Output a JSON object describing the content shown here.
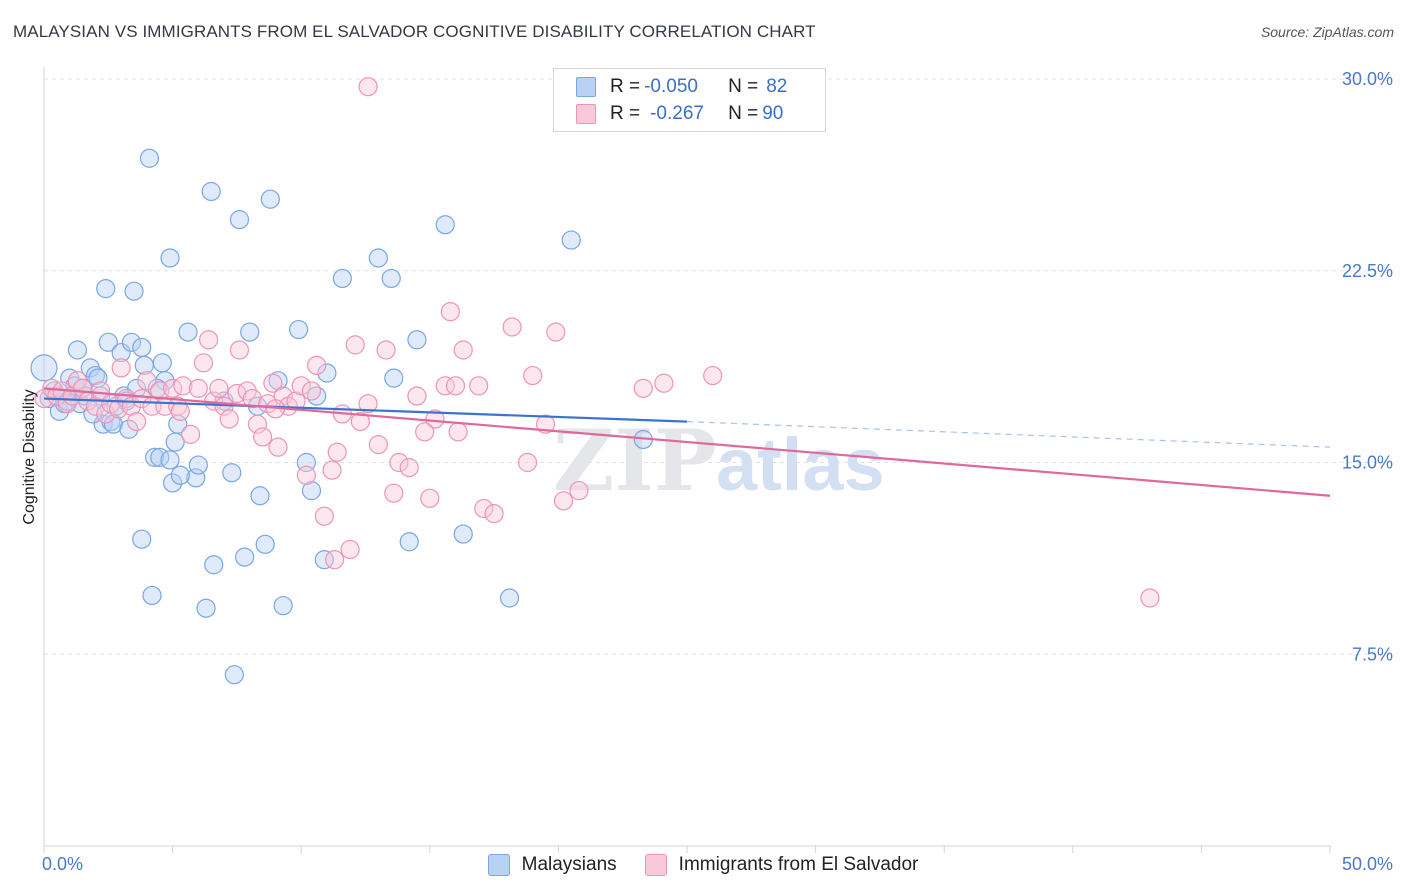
{
  "title": "MALAYSIAN VS IMMIGRANTS FROM EL SALVADOR COGNITIVE DISABILITY CORRELATION CHART",
  "source": "Source: ZipAtlas.com",
  "watermark": {
    "zip": "ZIP",
    "atlas": "atlas"
  },
  "legend": {
    "rows": [
      {
        "r_label": "R = ",
        "r_value": "-0.050",
        "n_label": "N = ",
        "n_value": "82"
      },
      {
        "r_label": "R = ",
        "r_value": "-0.267",
        "n_label": "N = ",
        "n_value": "90"
      }
    ]
  },
  "bottom_legend": {
    "series1": "Malaysians",
    "series2": "Immigrants from El Salvador"
  },
  "chart_data": {
    "type": "scatter",
    "ylabel": "Cognitive Disability",
    "xlabel": "",
    "xlim": [
      0,
      50
    ],
    "ylim": [
      0,
      30
    ],
    "x_tick_labels": [
      "0.0%",
      "50.0%"
    ],
    "y_ticks": [
      7.5,
      15.0,
      22.5,
      30.0
    ],
    "y_tick_labels": [
      "7.5%",
      "15.0%",
      "22.5%",
      "30.0%"
    ],
    "grid": "horizontal dashed",
    "legend_position": "top-center",
    "colors": {
      "series1": "#6fa0e0",
      "series1_line": "#3a74d0",
      "series2": "#ee94b6",
      "series2_line": "#e0689a"
    },
    "series": [
      {
        "name": "Malaysians",
        "r": -0.05,
        "n": 82,
        "trend": {
          "x0": 0,
          "y0": 17.5,
          "x1": 25,
          "y1": 16.6,
          "dashed_to_x": 50,
          "dashed_to_y": 15.6
        },
        "points": [
          [
            0.0,
            18.7
          ],
          [
            0.2,
            17.5
          ],
          [
            0.4,
            17.8
          ],
          [
            0.6,
            17.0
          ],
          [
            0.8,
            17.3
          ],
          [
            1.0,
            18.3
          ],
          [
            1.1,
            17.6
          ],
          [
            1.2,
            18.0
          ],
          [
            1.4,
            17.3
          ],
          [
            1.5,
            17.9
          ],
          [
            1.6,
            17.6
          ],
          [
            1.3,
            19.4
          ],
          [
            1.8,
            18.7
          ],
          [
            2.0,
            18.4
          ],
          [
            2.1,
            18.3
          ],
          [
            2.3,
            16.5
          ],
          [
            2.5,
            19.7
          ],
          [
            2.6,
            16.6
          ],
          [
            2.7,
            16.5
          ],
          [
            2.8,
            17.2
          ],
          [
            3.0,
            19.3
          ],
          [
            3.1,
            17.6
          ],
          [
            3.3,
            16.3
          ],
          [
            3.4,
            19.7
          ],
          [
            3.6,
            17.9
          ],
          [
            3.8,
            19.5
          ],
          [
            3.9,
            18.8
          ],
          [
            4.1,
            26.9
          ],
          [
            4.3,
            15.2
          ],
          [
            4.5,
            15.2
          ],
          [
            4.6,
            18.9
          ],
          [
            4.7,
            18.2
          ],
          [
            4.9,
            15.1
          ],
          [
            5.0,
            14.2
          ],
          [
            5.1,
            15.8
          ],
          [
            5.2,
            16.5
          ],
          [
            5.6,
            20.1
          ],
          [
            5.9,
            14.4
          ],
          [
            6.0,
            14.9
          ],
          [
            6.5,
            25.6
          ],
          [
            6.6,
            11.0
          ],
          [
            7.0,
            17.4
          ],
          [
            7.3,
            14.6
          ],
          [
            7.4,
            6.7
          ],
          [
            7.6,
            24.5
          ],
          [
            7.8,
            11.3
          ],
          [
            8.0,
            20.1
          ],
          [
            8.3,
            17.2
          ],
          [
            8.4,
            13.7
          ],
          [
            8.6,
            11.8
          ],
          [
            8.8,
            25.3
          ],
          [
            9.1,
            18.2
          ],
          [
            9.3,
            9.4
          ],
          [
            9.9,
            20.2
          ],
          [
            10.2,
            15.0
          ],
          [
            10.4,
            13.9
          ],
          [
            10.6,
            17.6
          ],
          [
            10.9,
            11.2
          ],
          [
            11.0,
            18.5
          ],
          [
            11.6,
            22.2
          ],
          [
            13.0,
            23.0
          ],
          [
            13.5,
            22.2
          ],
          [
            13.6,
            18.3
          ],
          [
            14.2,
            11.9
          ],
          [
            14.5,
            19.8
          ],
          [
            15.6,
            24.3
          ],
          [
            16.3,
            12.2
          ],
          [
            18.1,
            9.7
          ],
          [
            20.5,
            23.7
          ],
          [
            23.3,
            15.9
          ],
          [
            2.4,
            21.8
          ],
          [
            3.5,
            21.7
          ],
          [
            4.9,
            23.0
          ],
          [
            1.9,
            16.9
          ],
          [
            3.8,
            12.0
          ],
          [
            4.2,
            9.8
          ],
          [
            6.3,
            9.3
          ],
          [
            5.3,
            14.5
          ],
          [
            0.9,
            17.4
          ],
          [
            2.2,
            17.6
          ],
          [
            3.2,
            17.4
          ],
          [
            4.4,
            17.9
          ]
        ]
      },
      {
        "name": "Immigrants from El Salvador",
        "r": -0.267,
        "n": 90,
        "trend": {
          "x0": 0,
          "y0": 17.9,
          "x1": 50,
          "y1": 13.7
        },
        "points": [
          [
            0.0,
            17.5
          ],
          [
            0.3,
            17.9
          ],
          [
            0.5,
            17.6
          ],
          [
            0.7,
            17.8
          ],
          [
            0.9,
            17.3
          ],
          [
            1.1,
            17.6
          ],
          [
            1.3,
            18.2
          ],
          [
            1.5,
            17.9
          ],
          [
            1.7,
            17.4
          ],
          [
            2.0,
            17.2
          ],
          [
            2.2,
            17.8
          ],
          [
            2.4,
            16.9
          ],
          [
            2.6,
            17.3
          ],
          [
            2.9,
            17.1
          ],
          [
            3.0,
            18.7
          ],
          [
            3.2,
            17.5
          ],
          [
            3.4,
            17.2
          ],
          [
            3.6,
            16.6
          ],
          [
            3.8,
            17.5
          ],
          [
            4.0,
            18.2
          ],
          [
            4.2,
            17.2
          ],
          [
            4.5,
            17.8
          ],
          [
            4.7,
            17.2
          ],
          [
            5.0,
            17.9
          ],
          [
            5.2,
            17.2
          ],
          [
            5.3,
            17.0
          ],
          [
            5.4,
            18.0
          ],
          [
            5.7,
            16.1
          ],
          [
            6.0,
            17.9
          ],
          [
            6.2,
            18.9
          ],
          [
            6.4,
            19.8
          ],
          [
            6.6,
            17.4
          ],
          [
            6.8,
            17.9
          ],
          [
            7.0,
            17.2
          ],
          [
            7.2,
            16.7
          ],
          [
            7.5,
            17.7
          ],
          [
            7.6,
            19.4
          ],
          [
            7.9,
            17.8
          ],
          [
            8.1,
            17.5
          ],
          [
            8.3,
            16.5
          ],
          [
            8.5,
            16.0
          ],
          [
            8.7,
            17.3
          ],
          [
            8.9,
            18.1
          ],
          [
            9.1,
            15.6
          ],
          [
            9.3,
            17.6
          ],
          [
            9.5,
            17.2
          ],
          [
            9.8,
            17.4
          ],
          [
            10.0,
            18.0
          ],
          [
            10.2,
            14.5
          ],
          [
            10.4,
            17.8
          ],
          [
            10.6,
            18.8
          ],
          [
            10.9,
            12.9
          ],
          [
            11.2,
            14.7
          ],
          [
            11.4,
            15.4
          ],
          [
            11.6,
            16.9
          ],
          [
            11.9,
            11.6
          ],
          [
            12.1,
            19.6
          ],
          [
            12.3,
            16.6
          ],
          [
            12.6,
            17.3
          ],
          [
            13.0,
            15.7
          ],
          [
            13.3,
            19.4
          ],
          [
            13.6,
            13.8
          ],
          [
            13.8,
            15.0
          ],
          [
            14.2,
            14.8
          ],
          [
            14.5,
            17.6
          ],
          [
            15.0,
            13.6
          ],
          [
            15.2,
            16.7
          ],
          [
            15.6,
            18.0
          ],
          [
            16.0,
            18.0
          ],
          [
            16.3,
            19.4
          ],
          [
            16.9,
            18.0
          ],
          [
            17.1,
            13.2
          ],
          [
            17.5,
            13.0
          ],
          [
            18.2,
            20.3
          ],
          [
            18.8,
            15.0
          ],
          [
            19.0,
            18.4
          ],
          [
            19.5,
            16.5
          ],
          [
            19.9,
            20.1
          ],
          [
            20.2,
            13.5
          ],
          [
            20.8,
            13.9
          ],
          [
            23.3,
            17.9
          ],
          [
            24.1,
            18.1
          ],
          [
            26.0,
            18.4
          ],
          [
            43.0,
            9.7
          ],
          [
            12.6,
            29.7
          ],
          [
            15.8,
            20.9
          ],
          [
            11.3,
            11.2
          ],
          [
            14.8,
            16.2
          ],
          [
            16.1,
            16.2
          ],
          [
            9.0,
            17.1
          ]
        ]
      }
    ]
  }
}
